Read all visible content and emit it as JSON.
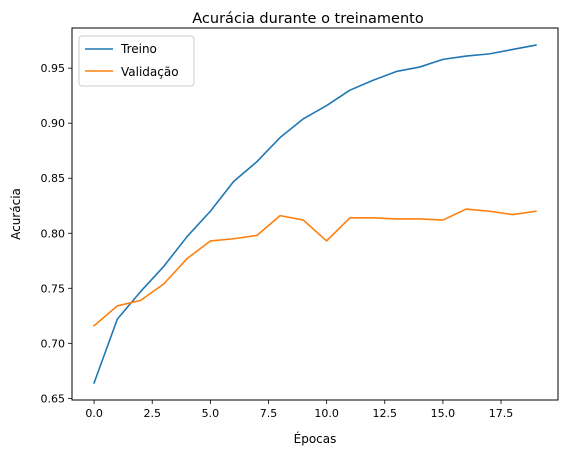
{
  "chart_data": {
    "type": "line",
    "title": "Acurácia durante o treinamento",
    "xlabel": "Épocas",
    "ylabel": "Acurácia",
    "x": [
      0,
      1,
      2,
      3,
      4,
      5,
      6,
      7,
      8,
      9,
      10,
      11,
      12,
      13,
      14,
      15,
      16,
      17,
      18,
      19
    ],
    "xlim": [
      -0.95,
      19.95
    ],
    "ylim": [
      0.6485,
      0.9865
    ],
    "xticks": [
      0.0,
      2.5,
      5.0,
      7.5,
      10.0,
      12.5,
      15.0,
      17.5
    ],
    "xtick_labels": [
      "0.0",
      "2.5",
      "5.0",
      "7.5",
      "10.0",
      "12.5",
      "15.0",
      "17.5"
    ],
    "yticks": [
      0.65,
      0.7,
      0.75,
      0.8,
      0.85,
      0.9,
      0.95
    ],
    "ytick_labels": [
      "0.65",
      "0.70",
      "0.75",
      "0.80",
      "0.85",
      "0.90",
      "0.95"
    ],
    "grid": false,
    "legend_position": "top-left",
    "series": [
      {
        "name": "Treino",
        "color": "#1f77b4",
        "values": [
          0.664,
          0.722,
          0.747,
          0.77,
          0.797,
          0.82,
          0.847,
          0.865,
          0.887,
          0.904,
          0.916,
          0.93,
          0.939,
          0.947,
          0.951,
          0.958,
          0.961,
          0.963,
          0.967,
          0.971
        ]
      },
      {
        "name": "Validação",
        "color": "#ff7f0e",
        "values": [
          0.716,
          0.734,
          0.739,
          0.754,
          0.777,
          0.793,
          0.795,
          0.798,
          0.816,
          0.812,
          0.793,
          0.814,
          0.814,
          0.813,
          0.813,
          0.812,
          0.822,
          0.82,
          0.817,
          0.82
        ]
      }
    ]
  }
}
